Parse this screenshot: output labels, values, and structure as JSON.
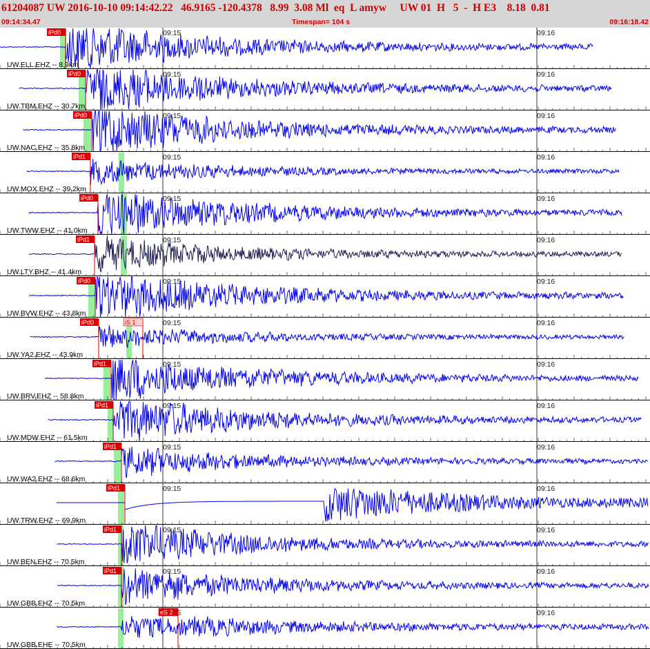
{
  "header": {
    "title": "61204087 UW 2016-10-10 09:14:42.22   46.9165 -120.4378   8.99  3.08 Ml  eq  L amyw     UW 01  H   5  -  H E3    8.18  0.81",
    "start_time": "09:14:34.47",
    "timespan": "Timespan= 104 s",
    "end_time": "09:16:18.42"
  },
  "colors": {
    "trace": "#0000ee",
    "trace_dark": "#1a1a4d",
    "pick_box": "#dd0000",
    "pick_line": "#cc0000",
    "pick_zone": "#99ee99",
    "s_box": "#ffcccc",
    "grid": "#000000",
    "header_bg": "#d6d6d6",
    "header_text": "#cc0000"
  },
  "time_marks": [
    "09:15",
    "09:16"
  ],
  "channels": [
    {
      "label": "UW.ELL.EHZ -- 8.9km",
      "pick": "iPd0",
      "p": 95,
      "s": null,
      "s_label": "",
      "gz": [
        87,
        96
      ],
      "start": 0,
      "end": 860,
      "amp": 1.0,
      "mode": "normal",
      "dark": false
    },
    {
      "label": "UW.TBM.EHZ -- 30.7km",
      "pick": "iPd0",
      "p": 124,
      "s": null,
      "s_label": "",
      "gz": [
        114,
        124
      ],
      "start": 28,
      "end": 887,
      "amp": 1.0,
      "mode": "normal",
      "dark": false
    },
    {
      "label": "UW.NAC.EHZ -- 35.8km",
      "pick": "iPd0",
      "p": 133,
      "s": null,
      "s_label": "",
      "gz": [
        121,
        132
      ],
      "start": 34,
      "end": 893,
      "amp": 1.0,
      "mode": "normal",
      "dark": false
    },
    {
      "label": "UW.MOX.EHZ -- 39.2km",
      "pick": "iPd1",
      "p": 131,
      "s": null,
      "s_label": "",
      "gz": [
        172,
        180
      ],
      "start": 39,
      "end": 898,
      "amp": 0.45,
      "mode": "normal",
      "dark": false
    },
    {
      "label": "UW.TWW.EHZ -- 41.0km",
      "pick": "iPd0",
      "p": 142,
      "s": null,
      "s_label": "",
      "gz": [
        175,
        184
      ],
      "start": 42,
      "end": 902,
      "amp": 1.0,
      "mode": "normal",
      "dark": false
    },
    {
      "label": "UW.LTY.BHZ -- 41.4km",
      "pick": "iPd1",
      "p": 137,
      "s": null,
      "s_label": "",
      "gz": [
        175,
        184
      ],
      "start": 42,
      "end": 902,
      "amp": 0.65,
      "mode": "normal",
      "dark": true
    },
    {
      "label": "UW.BVW.EHZ -- 43.8km",
      "pick": "iPd0",
      "p": 138,
      "s": null,
      "s_label": "",
      "gz": [
        128,
        138
      ],
      "start": 42,
      "end": 904,
      "amp": 1.0,
      "mode": "normal",
      "dark": false
    },
    {
      "label": "UW.YA2.EHZ -- 43.9km",
      "pick": "iPd0",
      "p": 143,
      "s": 207,
      "s_label": "iS 1",
      "gz": [
        183,
        191
      ],
      "start": 44,
      "end": 905,
      "amp": 0.4,
      "mode": "normal",
      "dark": false
    },
    {
      "label": "UW.BRV.EHZ -- 58.8km",
      "pick": "iPd1",
      "p": 161,
      "s": null,
      "s_label": "",
      "gz": [
        150,
        160
      ],
      "start": 66,
      "end": 926,
      "amp": 0.9,
      "mode": "normal",
      "dark": false
    },
    {
      "label": "UW.MDW.EHZ -- 61.5km",
      "pick": "iPd1",
      "p": 164,
      "s": null,
      "s_label": "",
      "gz": [
        156,
        164
      ],
      "start": 70,
      "end": 930,
      "amp": 0.9,
      "mode": "normal",
      "dark": false
    },
    {
      "label": "UW.WA2.EHZ -- 68.6km",
      "pick": "iPd1",
      "p": 176,
      "s": null,
      "s_label": "",
      "gz": [
        165,
        175
      ],
      "start": 80,
      "end": 940,
      "amp": 0.55,
      "mode": "normal",
      "dark": false
    },
    {
      "label": "UW.TRW.EHZ -- 69.9km",
      "pick": "iPd1",
      "p": 181,
      "s": null,
      "s_label": "",
      "gz": [
        171,
        180
      ],
      "start": 82,
      "end": 940,
      "amp": 0.6,
      "mode": "trw",
      "dark": false
    },
    {
      "label": "UW.BEN.EHZ -- 70.5km",
      "pick": "iPd1",
      "p": 176,
      "s": null,
      "s_label": "",
      "gz": [
        171,
        179
      ],
      "start": 83,
      "end": 940,
      "amp": 0.8,
      "mode": "normal",
      "dark": false
    },
    {
      "label": "UW.GBB.EHZ -- 70.5km",
      "pick": "iPd1",
      "p": 176,
      "s": null,
      "s_label": "",
      "gz": [
        171,
        179
      ],
      "start": 83,
      "end": 940,
      "amp": 0.7,
      "mode": "normal",
      "dark": false
    },
    {
      "label": "UW.GBB.EHE -- 70.5km",
      "pick": "",
      "p": 176,
      "s": 258,
      "s_label": "eS 2",
      "gz": [
        171,
        179
      ],
      "start": 83,
      "end": 940,
      "amp": 0.7,
      "mode": "ehe",
      "dark": false
    }
  ]
}
